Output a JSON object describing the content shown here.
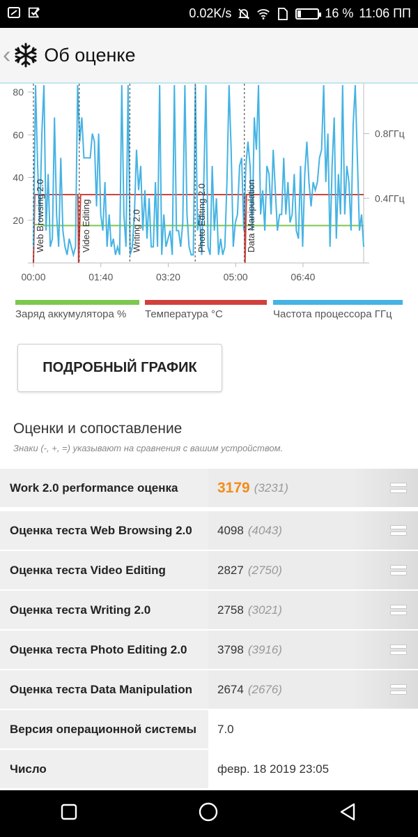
{
  "status_bar": {
    "speed": "0.02K/s",
    "battery_percent": "16 %",
    "battery_level": 0.16,
    "time": "11:06 ПП",
    "left_icons": [
      "screenshot-icon",
      "checkmark-flag-icon"
    ],
    "right_icons": [
      "mute-bell-icon",
      "wifi-icon",
      "data-icon",
      "battery-icon"
    ]
  },
  "app_bar": {
    "back_glyph": "‹",
    "title": "Об оценке",
    "icon": "snowflake-icon"
  },
  "chart_data": {
    "type": "line",
    "x_ticks": [
      "00:00",
      "01:40",
      "03:20",
      "05:00",
      "06:40"
    ],
    "x_range_minutes": [
      0,
      490
    ],
    "y_left_ticks": [
      "20",
      "40",
      "60",
      "80"
    ],
    "y_left_range": [
      0,
      80
    ],
    "y_right_ticks": [
      "0.4ГГц",
      "0.8ГГц"
    ],
    "y_right_range_ghz": [
      0,
      1.1
    ],
    "markers": [
      {
        "label": "Web Browsing 2.0",
        "x": 0
      },
      {
        "label": "Video Editing",
        "x": 68
      },
      {
        "label": "Writing 2.0",
        "x": 143
      },
      {
        "label": "Photo Editing 2.0",
        "x": 240
      },
      {
        "label": "Data Manipulation",
        "x": 313
      }
    ],
    "series": [
      {
        "name": "Заряд аккумулятора %",
        "color": "#7cc84e",
        "points": [
          [
            0,
            18
          ],
          [
            15,
            18
          ],
          [
            15,
            17.5
          ],
          [
            490,
            17.5
          ]
        ]
      },
      {
        "name": "Температура °C",
        "color": "#d0413c",
        "points": [
          [
            0,
            0
          ],
          [
            2,
            32
          ],
          [
            66,
            32
          ],
          [
            67,
            0
          ],
          [
            70,
            32
          ],
          [
            313,
            32
          ],
          [
            314,
            0
          ],
          [
            316,
            32
          ],
          [
            490,
            32
          ]
        ]
      },
      {
        "name": "Частота процессора ГГц",
        "color": "#45b3e3",
        "values_ghz": [
          0.1,
          1.1,
          0.6,
          0.25,
          0.8,
          1.1,
          0.2,
          0.55,
          0.1,
          0.15,
          0.9,
          0.3,
          0.1,
          0.65,
          0.2,
          0.1,
          0.05,
          0.15,
          0.1,
          0.05,
          0.1,
          1.1,
          0.75,
          0.9,
          0.65,
          0.65,
          0.65,
          0.65,
          0.8,
          0.75,
          0.35,
          0.8,
          0.3,
          0.2,
          0.5,
          0.1,
          0.3,
          0.1,
          0.15,
          0.05,
          0.1,
          0.05,
          1.1,
          0.3,
          0.1,
          1.1,
          0.05,
          0.1,
          0.3,
          0.7,
          0.45,
          0.6,
          0.2,
          0.45,
          0.15,
          0.4,
          0.1,
          0.1,
          0.5,
          0.1,
          1.1,
          0.05,
          0.3,
          0.1,
          0.15,
          0.2,
          0.05,
          1.1,
          0.2,
          0.2,
          0.1,
          0.25,
          1.1,
          0.3,
          0.1,
          0.05,
          0.05,
          1.1,
          0.2,
          0.3,
          0.05,
          0.5,
          1.1,
          0.1,
          0.05,
          0.6,
          0.2,
          0.4,
          0.05,
          0.15,
          0.05,
          0.1,
          0.5,
          1.1,
          0.7,
          0.1,
          0.25,
          0.3,
          0.6,
          0.65,
          0.2,
          0.6,
          0.75,
          0.6,
          0.2,
          0.9,
          0.7,
          1.1,
          0.3,
          0.45,
          0.2,
          0.6,
          0.55,
          0.3,
          0.7,
          0.45,
          0.2,
          0.3,
          0.3,
          0.65,
          0.3,
          0.5,
          0.25,
          0.3,
          0.55,
          0.2,
          0.15,
          0.6,
          0.1,
          0.55,
          0.75,
          0.5,
          0.35,
          0.5,
          0.45,
          0.5,
          0.65,
          0.7,
          1.1,
          0.5,
          0.8,
          0.1,
          0.6,
          0.9,
          0.15,
          0.55,
          0.3,
          1.1,
          0.3,
          0.6,
          0.5,
          0.2,
          0.85,
          1.1,
          0.65,
          0.2,
          0.3,
          0.1
        ]
      }
    ]
  },
  "legend": [
    {
      "label": "Заряд аккумулятора %",
      "color": "#7cc84e"
    },
    {
      "label": "Температура °C",
      "color": "#d0413c"
    },
    {
      "label": "Частота процессора ГГц",
      "color": "#45b3e3"
    }
  ],
  "detail_button": "ПОДРОБНЫЙ ГРАФИК",
  "section": {
    "title": "Оценки и сопоставление",
    "subtitle": "Знаки (-, +, =) указывают на сравнения с вашим устройством."
  },
  "scores": [
    {
      "name": "Work 2.0 performance оценка",
      "value": "3179",
      "compare": "(3231)",
      "icon": "equal-icon"
    },
    {
      "name": "Оценка теста Web Browsing 2.0",
      "value": "4098",
      "compare": "(4043)",
      "icon": "equal-icon"
    },
    {
      "name": "Оценка теста Video Editing",
      "value": "2827",
      "compare": "(2750)",
      "icon": "equal-icon"
    },
    {
      "name": "Оценка теста Writing 2.0",
      "value": "2758",
      "compare": "(3021)",
      "icon": "equal-icon"
    },
    {
      "name": "Оценка теста Photo Editing 2.0",
      "value": "3798",
      "compare": "(3916)",
      "icon": "equal-icon"
    },
    {
      "name": "Оценка теста Data Manipulation",
      "value": "2674",
      "compare": "(2676)",
      "icon": "equal-icon"
    }
  ],
  "info_rows": [
    {
      "name": "Версия операционной системы",
      "value": "7.0"
    },
    {
      "name": "Число",
      "value": "февр. 18 2019 23:05"
    }
  ],
  "nav_bar": {
    "icons": [
      "recents-square-icon",
      "home-circle-icon",
      "back-triangle-icon"
    ]
  }
}
